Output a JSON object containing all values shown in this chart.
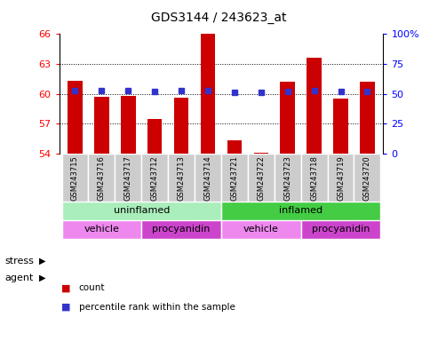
{
  "title": "GDS3144 / 243623_at",
  "samples": [
    "GSM243715",
    "GSM243716",
    "GSM243717",
    "GSM243712",
    "GSM243713",
    "GSM243714",
    "GSM243721",
    "GSM243722",
    "GSM243723",
    "GSM243718",
    "GSM243719",
    "GSM243720"
  ],
  "counts": [
    61.3,
    59.7,
    59.8,
    57.5,
    59.6,
    66.1,
    55.3,
    54.1,
    61.2,
    63.6,
    59.5,
    61.2
  ],
  "percentiles": [
    53,
    53,
    53,
    52,
    53,
    53,
    51,
    51,
    52,
    53,
    52,
    52
  ],
  "ylim_left": [
    54,
    66
  ],
  "ylim_right": [
    0,
    100
  ],
  "yticks_left": [
    54,
    57,
    60,
    63,
    66
  ],
  "yticks_right": [
    0,
    25,
    50,
    75,
    100
  ],
  "hgrid_lines": [
    57,
    60,
    63
  ],
  "bar_color": "#cc0000",
  "dot_color": "#3333cc",
  "stress_groups": [
    {
      "label": "uninflamed",
      "start": 0,
      "end": 6,
      "color": "#aaeebb"
    },
    {
      "label": "inflamed",
      "start": 6,
      "end": 12,
      "color": "#44cc44"
    }
  ],
  "agent_groups": [
    {
      "label": "vehicle",
      "start": 0,
      "end": 3,
      "color": "#ee88ee"
    },
    {
      "label": "procyanidin",
      "start": 3,
      "end": 6,
      "color": "#cc44cc"
    },
    {
      "label": "vehicle",
      "start": 6,
      "end": 9,
      "color": "#ee88ee"
    },
    {
      "label": "procyanidin",
      "start": 9,
      "end": 12,
      "color": "#cc44cc"
    }
  ],
  "legend_items": [
    {
      "label": "count",
      "color": "#cc0000"
    },
    {
      "label": "percentile rank within the sample",
      "color": "#3333cc"
    }
  ],
  "tick_bg_color": "#cccccc",
  "stress_label": "stress",
  "agent_label": "agent",
  "bar_width": 0.55
}
